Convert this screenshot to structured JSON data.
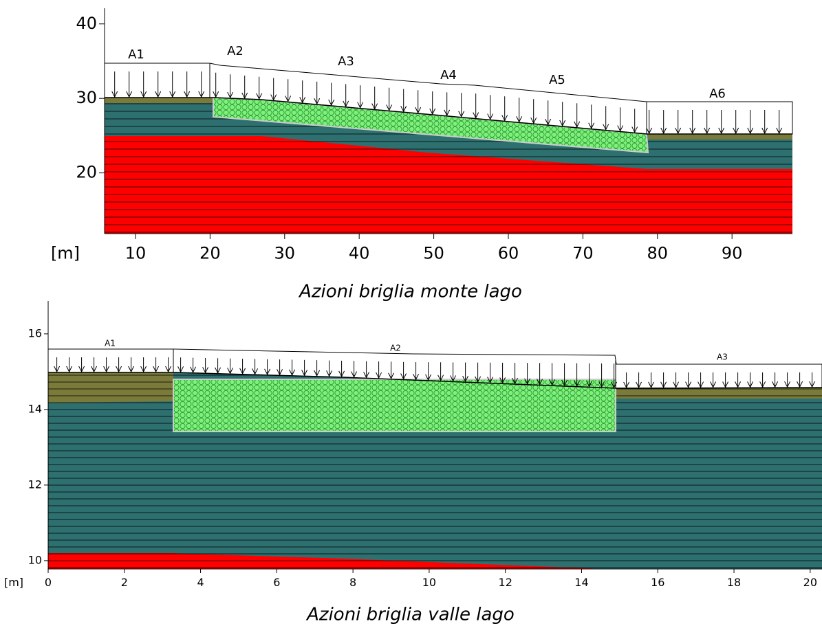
{
  "panels": [
    {
      "caption": "Azioni briglia monte lago",
      "axis_unit": "[m]",
      "xlim": [
        5.85,
        98.1
      ],
      "ylim": [
        11.85,
        42.1
      ],
      "xticks": [
        10,
        20,
        30,
        40,
        50,
        60,
        70,
        80,
        90
      ],
      "yticks": [
        20,
        30,
        40
      ],
      "load_labels": [
        "A1",
        "A2",
        "A3",
        "A4",
        "A5",
        "A6"
      ]
    },
    {
      "caption": "Azioni briglia valle lago",
      "axis_unit": "[m]",
      "xlim": [
        0,
        20.31
      ],
      "ylim": [
        9.78,
        16.87
      ],
      "xticks": [
        0,
        2,
        4,
        6,
        8,
        10,
        12,
        14,
        16,
        18,
        20
      ],
      "yticks": [
        10,
        12,
        14,
        16
      ],
      "load_labels": [
        "A1",
        "A2",
        "A3"
      ]
    }
  ]
}
